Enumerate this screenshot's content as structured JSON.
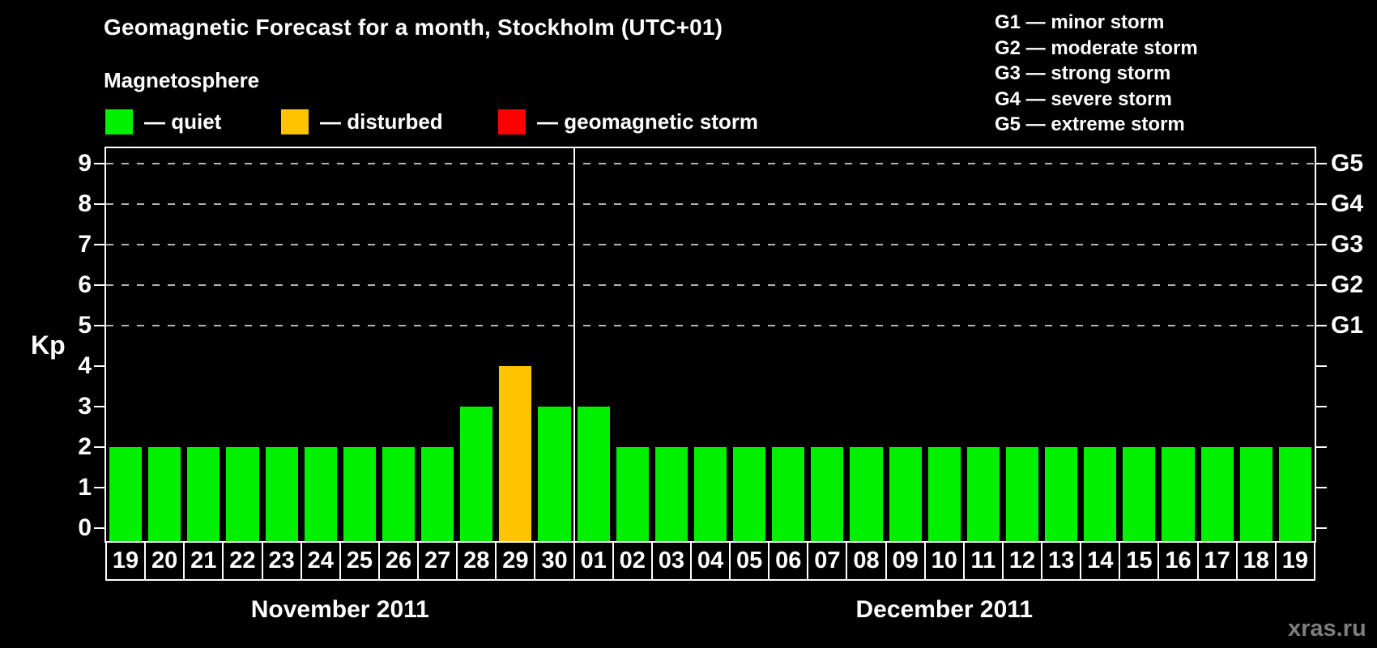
{
  "header": {
    "title": "Geomagnetic Forecast for a month, Stockholm (UTC+01)",
    "subtitle": "Magnetosphere",
    "legend": [
      {
        "label": "— quiet",
        "state": "quiet",
        "color": "#00f000"
      },
      {
        "label": "— disturbed",
        "state": "disturbed",
        "color": "#ffc400"
      },
      {
        "label": "— geomagnetic storm",
        "state": "storm",
        "color": "#ff0000"
      }
    ],
    "g_legend": [
      "G1 — minor storm",
      "G2 — moderate storm",
      "G3 — strong storm",
      "G4 — severe storm",
      "G5 — extreme storm"
    ]
  },
  "chart_data": {
    "type": "bar",
    "title": "Geomagnetic Forecast for a month, Stockholm (UTC+01)",
    "ylabel": "Kp",
    "ylim": [
      0,
      9
    ],
    "yticks": [
      0,
      1,
      2,
      3,
      4,
      5,
      6,
      7,
      8,
      9
    ],
    "grid_levels": [
      5,
      6,
      7,
      8,
      9
    ],
    "legend_position": "top",
    "grid": "dashed horizontal at Kp 5-9",
    "right_axis": [
      {
        "kp": 5,
        "label": "G1"
      },
      {
        "kp": 6,
        "label": "G2"
      },
      {
        "kp": 7,
        "label": "G3"
      },
      {
        "kp": 8,
        "label": "G4"
      },
      {
        "kp": 9,
        "label": "G5"
      }
    ],
    "state_colors": {
      "quiet": "#00f000",
      "disturbed": "#ffc400",
      "storm": "#ff0000"
    },
    "months": [
      {
        "label": "November 2011",
        "bars": [
          {
            "day": "19",
            "kp": 2,
            "state": "quiet"
          },
          {
            "day": "20",
            "kp": 2,
            "state": "quiet"
          },
          {
            "day": "21",
            "kp": 2,
            "state": "quiet"
          },
          {
            "day": "22",
            "kp": 2,
            "state": "quiet"
          },
          {
            "day": "23",
            "kp": 2,
            "state": "quiet"
          },
          {
            "day": "24",
            "kp": 2,
            "state": "quiet"
          },
          {
            "day": "25",
            "kp": 2,
            "state": "quiet"
          },
          {
            "day": "26",
            "kp": 2,
            "state": "quiet"
          },
          {
            "day": "27",
            "kp": 2,
            "state": "quiet"
          },
          {
            "day": "28",
            "kp": 3,
            "state": "quiet"
          },
          {
            "day": "29",
            "kp": 4,
            "state": "disturbed"
          },
          {
            "day": "30",
            "kp": 3,
            "state": "quiet"
          }
        ]
      },
      {
        "label": "December 2011",
        "bars": [
          {
            "day": "01",
            "kp": 3,
            "state": "quiet"
          },
          {
            "day": "02",
            "kp": 2,
            "state": "quiet"
          },
          {
            "day": "03",
            "kp": 2,
            "state": "quiet"
          },
          {
            "day": "04",
            "kp": 2,
            "state": "quiet"
          },
          {
            "day": "05",
            "kp": 2,
            "state": "quiet"
          },
          {
            "day": "06",
            "kp": 2,
            "state": "quiet"
          },
          {
            "day": "07",
            "kp": 2,
            "state": "quiet"
          },
          {
            "day": "08",
            "kp": 2,
            "state": "quiet"
          },
          {
            "day": "09",
            "kp": 2,
            "state": "quiet"
          },
          {
            "day": "10",
            "kp": 2,
            "state": "quiet"
          },
          {
            "day": "11",
            "kp": 2,
            "state": "quiet"
          },
          {
            "day": "12",
            "kp": 2,
            "state": "quiet"
          },
          {
            "day": "13",
            "kp": 2,
            "state": "quiet"
          },
          {
            "day": "14",
            "kp": 2,
            "state": "quiet"
          },
          {
            "day": "15",
            "kp": 2,
            "state": "quiet"
          },
          {
            "day": "16",
            "kp": 2,
            "state": "quiet"
          },
          {
            "day": "17",
            "kp": 2,
            "state": "quiet"
          },
          {
            "day": "18",
            "kp": 2,
            "state": "quiet"
          },
          {
            "day": "19",
            "kp": 2,
            "state": "quiet"
          }
        ]
      }
    ]
  },
  "watermark": "xras.ru"
}
